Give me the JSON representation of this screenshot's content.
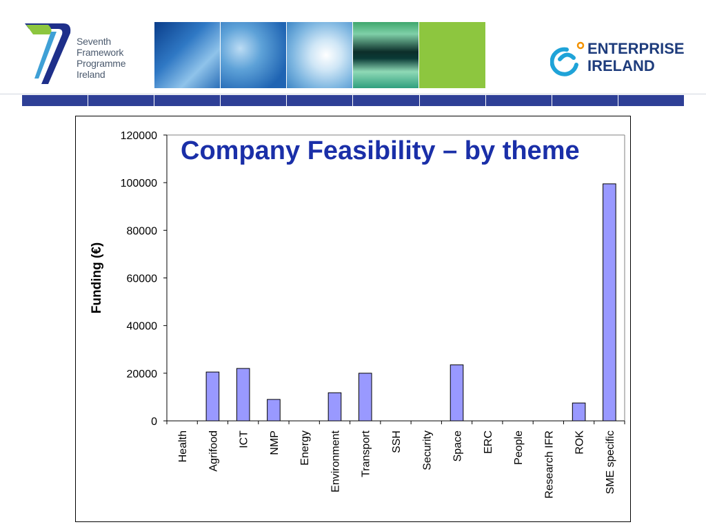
{
  "header": {
    "fp7_logo": {
      "lines": [
        "Seventh",
        "Framework",
        "Programme",
        "Ireland"
      ],
      "accent_color": "#1e2f8a",
      "green_color": "#8dc63f"
    },
    "banner": {
      "panels": 5
    },
    "ei_logo": {
      "lines": [
        "ENTERPRISE",
        "IRELAND"
      ],
      "icon": "enterprise-ireland-e-icon",
      "color": "#1e3c7c",
      "accent_color": "#1fa3d8",
      "dot_color": "#f39200"
    },
    "nav_strip_color": "#2e3f96",
    "nav_segments": 10
  },
  "chart_data": {
    "type": "bar",
    "title": "Company Feasibility – by theme",
    "xlabel": "",
    "ylabel": "Funding (€)",
    "categories": [
      "Health",
      "Agrifood",
      "ICT",
      "NMP",
      "Energy",
      "Environment",
      "Transport",
      "SSH",
      "Security",
      "Space",
      "ERC",
      "People",
      "Research IFR",
      "ROK",
      "SME specific"
    ],
    "values": [
      0,
      20500,
      22000,
      9000,
      0,
      11800,
      20000,
      0,
      0,
      23500,
      0,
      0,
      0,
      7500,
      99500
    ],
    "ylim": [
      0,
      120000
    ],
    "yticks": [
      0,
      20000,
      40000,
      60000,
      80000,
      100000,
      120000
    ],
    "bar_color": "#9999ff",
    "bar_edge_color": "#000000",
    "title_color": "#1a2fa8",
    "grid": false,
    "legend": "none"
  }
}
